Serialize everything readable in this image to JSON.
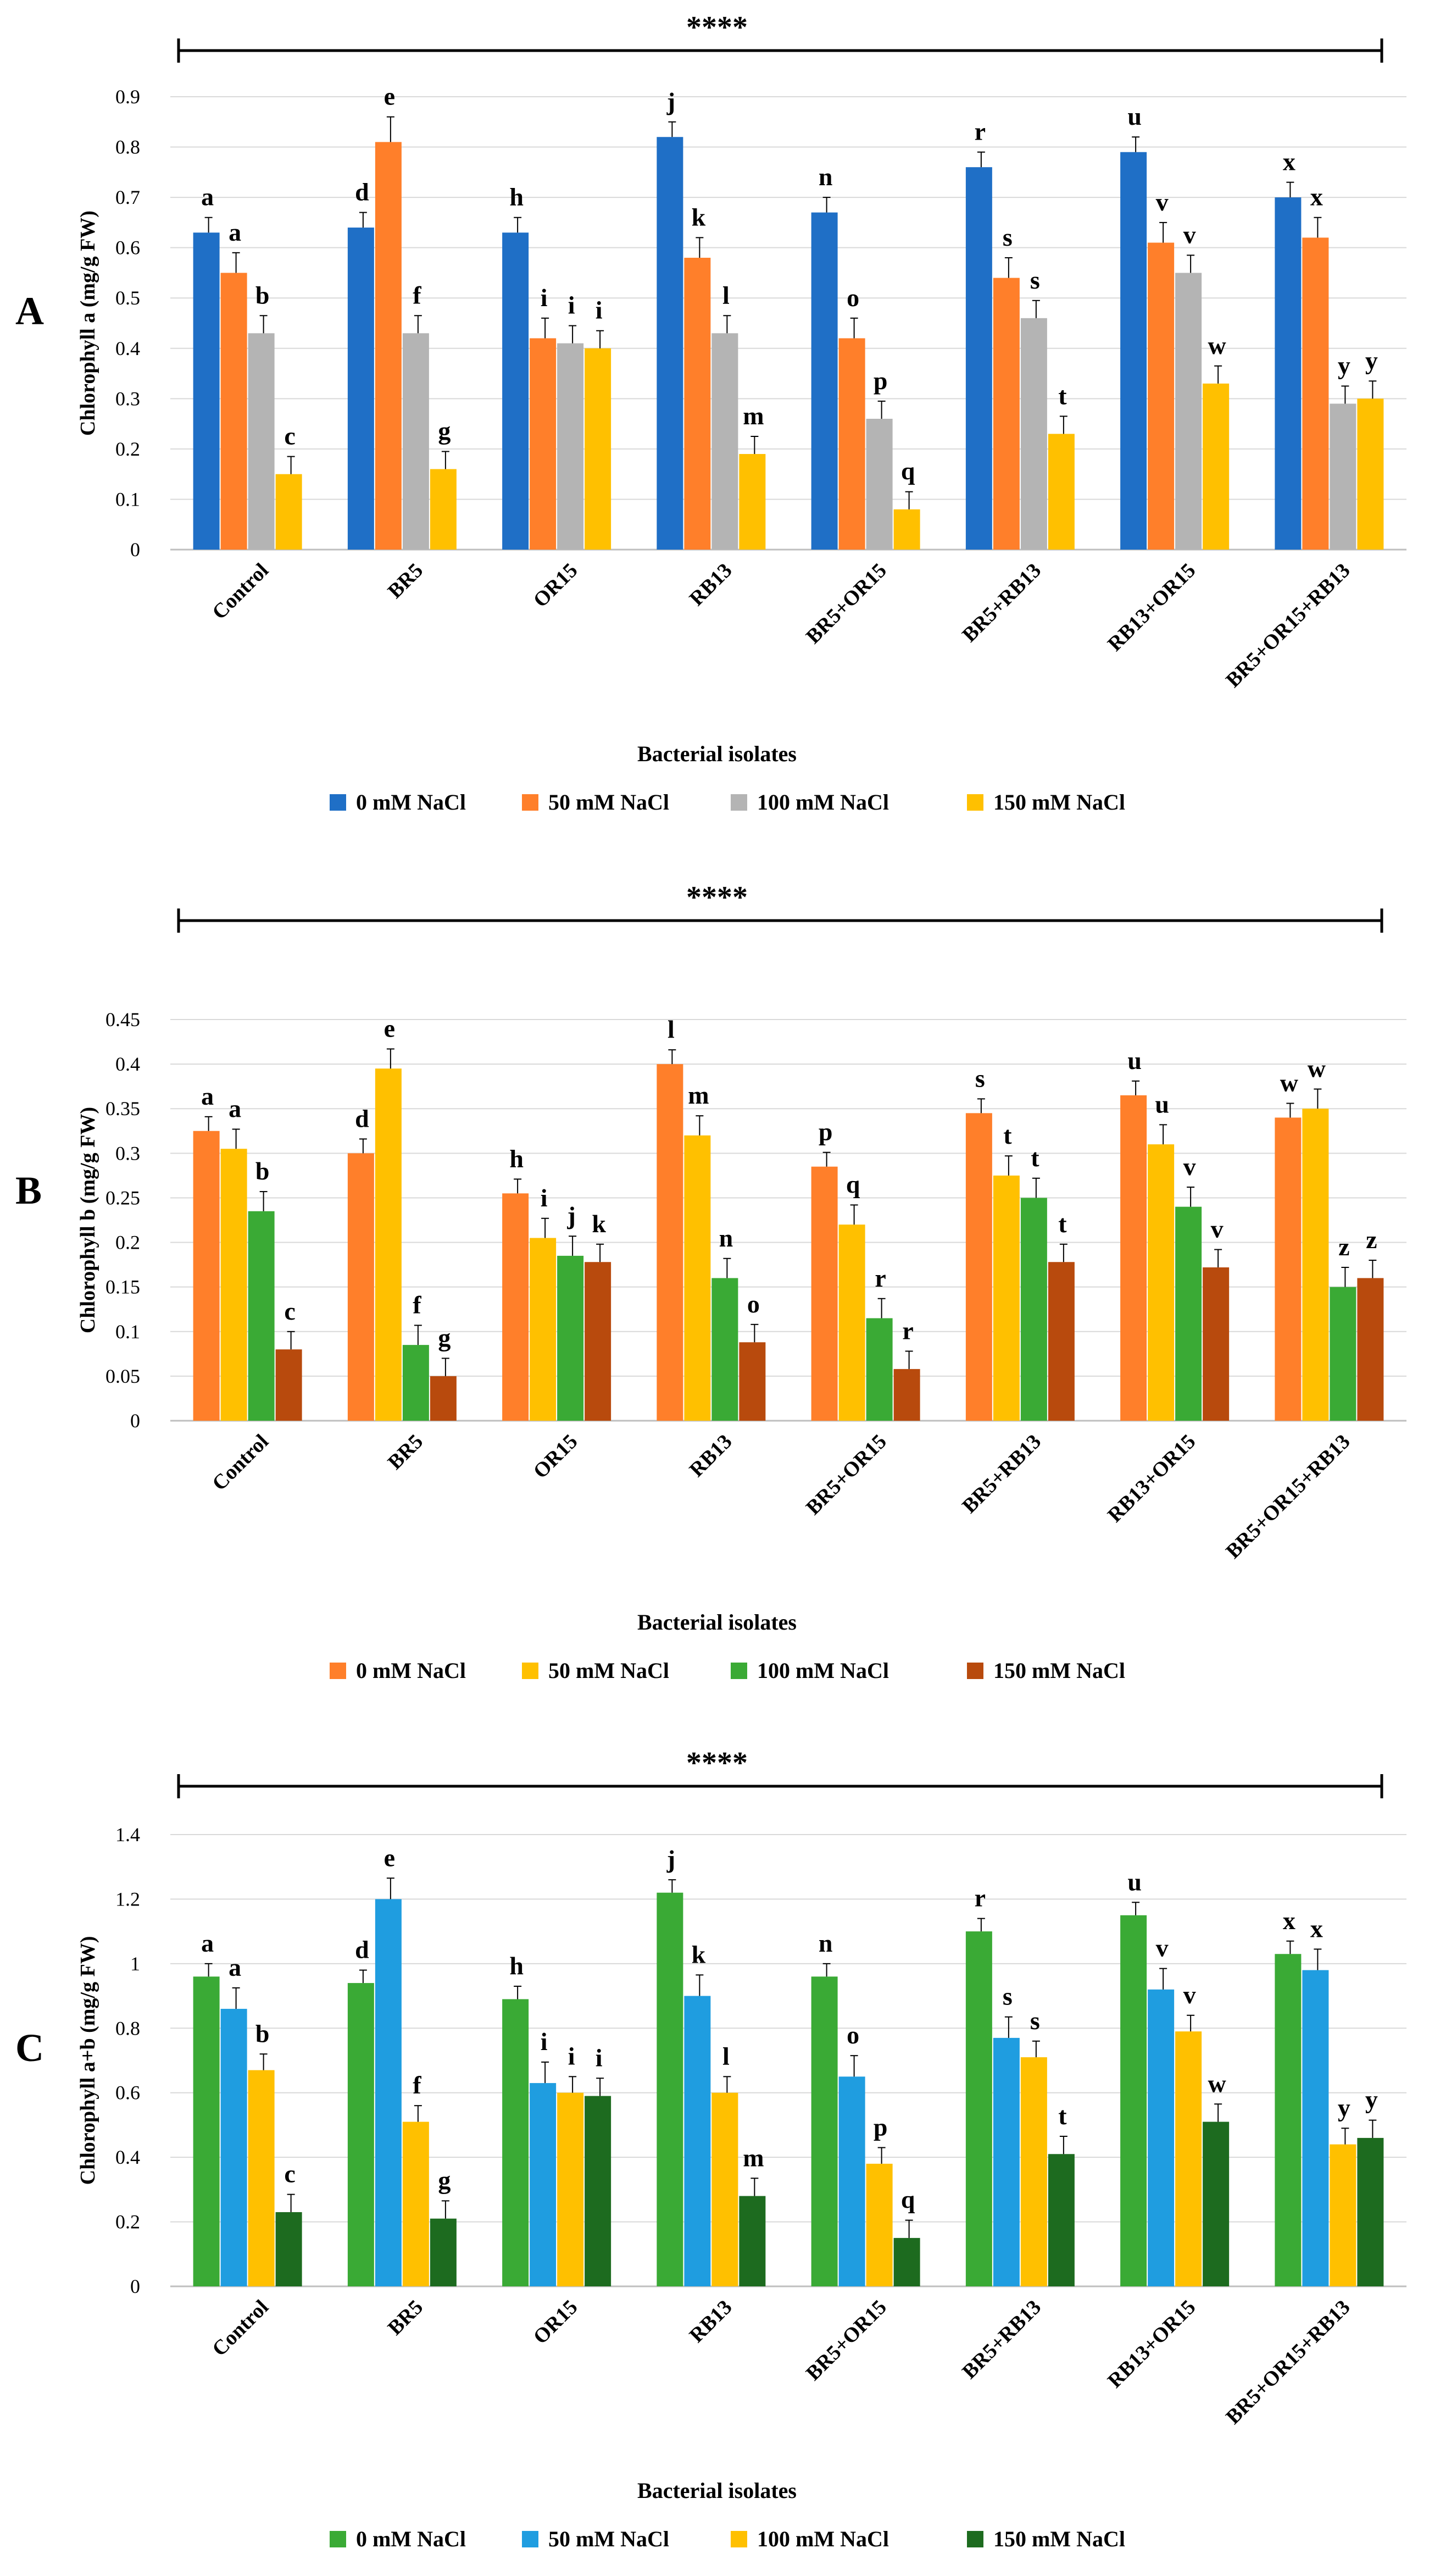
{
  "figure": {
    "significance": "****",
    "panels": [
      "A",
      "B",
      "C"
    ],
    "xlabel": "Bacterial isolates"
  },
  "chart_data": [
    {
      "panel": "A",
      "type": "bar",
      "title": "",
      "ylabel": "Chlorophyll a (mg/g FW)",
      "xlabel": "Bacterial isolates",
      "ylim": [
        0,
        0.9
      ],
      "yticks": [
        "0",
        "0.1",
        "0.2",
        "0.3",
        "0.4",
        "0.5",
        "0.6",
        "0.7",
        "0.8",
        "0.9"
      ],
      "ytick_values": [
        0,
        0.1,
        0.2,
        0.3,
        0.4,
        0.5,
        0.6,
        0.7,
        0.8,
        0.9
      ],
      "grid": true,
      "legend_position": "bottom-center",
      "significance": "****",
      "categories": [
        "Control",
        "BR5",
        "OR15",
        "RB13",
        "BR5+OR15",
        "BR5+RB13",
        "RB13+OR15",
        "BR5+OR15+RB13"
      ],
      "series": [
        {
          "name": "0 mM NaCl",
          "color": "#1f6fc6",
          "values": [
            0.63,
            0.64,
            0.63,
            0.82,
            0.67,
            0.76,
            0.79,
            0.7
          ],
          "errors": [
            0.03,
            0.03,
            0.03,
            0.03,
            0.03,
            0.03,
            0.03,
            0.03
          ],
          "letters": [
            "a",
            "d",
            "h",
            "j",
            "n",
            "r",
            "u",
            "x"
          ]
        },
        {
          "name": "50 mM NaCl",
          "color": "#ff7f2a",
          "values": [
            0.55,
            0.81,
            0.42,
            0.58,
            0.42,
            0.54,
            0.61,
            0.62
          ],
          "errors": [
            0.04,
            0.05,
            0.04,
            0.04,
            0.04,
            0.04,
            0.04,
            0.04
          ],
          "letters": [
            "a",
            "e",
            "i",
            "k",
            "o",
            "s",
            "v",
            "x"
          ]
        },
        {
          "name": "100 mM NaCl",
          "color": "#b4b4b4",
          "values": [
            0.43,
            0.43,
            0.41,
            0.43,
            0.26,
            0.46,
            0.55,
            0.29
          ],
          "errors": [
            0.035,
            0.035,
            0.035,
            0.035,
            0.035,
            0.035,
            0.035,
            0.035
          ],
          "letters": [
            "b",
            "f",
            "i",
            "l",
            "p",
            "s",
            "v",
            "y"
          ]
        },
        {
          "name": "150 mM NaCl",
          "color": "#ffc000",
          "values": [
            0.15,
            0.16,
            0.4,
            0.19,
            0.08,
            0.23,
            0.33,
            0.3
          ],
          "errors": [
            0.035,
            0.035,
            0.035,
            0.035,
            0.035,
            0.035,
            0.035,
            0.035
          ],
          "letters": [
            "c",
            "g",
            "i",
            "m",
            "q",
            "t",
            "w",
            "y"
          ]
        }
      ]
    },
    {
      "panel": "B",
      "type": "bar",
      "title": "",
      "ylabel": "Chlorophyll b (mg/g FW)",
      "xlabel": "Bacterial isolates",
      "ylim": [
        0,
        0.45
      ],
      "yticks": [
        "0",
        "0.05",
        "0.1",
        "0.15",
        "0.2",
        "0.25",
        "0.3",
        "0.35",
        "0.4",
        "0.45"
      ],
      "ytick_values": [
        0,
        0.05,
        0.1,
        0.15,
        0.2,
        0.25,
        0.3,
        0.35,
        0.4,
        0.45
      ],
      "grid": true,
      "legend_position": "bottom-center",
      "significance": "****",
      "categories": [
        "Control",
        "BR5",
        "OR15",
        "RB13",
        "BR5+OR15",
        "BR5+RB13",
        "RB13+OR15",
        "BR5+OR15+RB13"
      ],
      "series": [
        {
          "name": "0 mM NaCl",
          "color": "#ff7f2a",
          "values": [
            0.325,
            0.3,
            0.255,
            0.4,
            0.285,
            0.345,
            0.365,
            0.34
          ],
          "errors": [
            0.016,
            0.016,
            0.016,
            0.016,
            0.016,
            0.016,
            0.016,
            0.016
          ],
          "letters": [
            "a",
            "d",
            "h",
            "l",
            "p",
            "s",
            "u",
            "w"
          ]
        },
        {
          "name": "50 mM NaCl",
          "color": "#ffc000",
          "values": [
            0.305,
            0.395,
            0.205,
            0.32,
            0.22,
            0.275,
            0.31,
            0.35
          ],
          "errors": [
            0.022,
            0.022,
            0.022,
            0.022,
            0.022,
            0.022,
            0.022,
            0.022
          ],
          "letters": [
            "a",
            "e",
            "i",
            "m",
            "q",
            "t",
            "u",
            "w"
          ]
        },
        {
          "name": "100 mM NaCl",
          "color": "#3aaa35",
          "values": [
            0.235,
            0.085,
            0.185,
            0.16,
            0.115,
            0.25,
            0.24,
            0.15
          ],
          "errors": [
            0.022,
            0.022,
            0.022,
            0.022,
            0.022,
            0.022,
            0.022,
            0.022
          ],
          "letters": [
            "b",
            "f",
            "j",
            "n",
            "r",
            "t",
            "v",
            "z"
          ]
        },
        {
          "name": "150 mM NaCl",
          "color": "#b84a0d",
          "values": [
            0.08,
            0.05,
            0.178,
            0.088,
            0.058,
            0.178,
            0.172,
            0.16
          ],
          "errors": [
            0.02,
            0.02,
            0.02,
            0.02,
            0.02,
            0.02,
            0.02,
            0.02
          ],
          "letters": [
            "c",
            "g",
            "k",
            "o",
            "r",
            "t",
            "v",
            "z"
          ]
        }
      ]
    },
    {
      "panel": "C",
      "type": "bar",
      "title": "",
      "ylabel": "Chlorophyll a+b (mg/g FW)",
      "xlabel": "Bacterial isolates",
      "ylim": [
        0,
        1.4
      ],
      "yticks": [
        "0",
        "0.2",
        "0.4",
        "0.6",
        "0.8",
        "1",
        "1.2",
        "1.4"
      ],
      "ytick_values": [
        0,
        0.2,
        0.4,
        0.6,
        0.8,
        1,
        1.2,
        1.4
      ],
      "grid": true,
      "legend_position": "bottom-center",
      "significance": "****",
      "categories": [
        "Control",
        "BR5",
        "OR15",
        "RB13",
        "BR5+OR15",
        "BR5+RB13",
        "RB13+OR15",
        "BR5+OR15+RB13"
      ],
      "series": [
        {
          "name": "0 mM NaCl",
          "color": "#3aaa35",
          "values": [
            0.96,
            0.94,
            0.89,
            1.22,
            0.96,
            1.1,
            1.15,
            1.03
          ],
          "errors": [
            0.04,
            0.04,
            0.04,
            0.04,
            0.04,
            0.04,
            0.04,
            0.04
          ],
          "letters": [
            "a",
            "d",
            "h",
            "j",
            "n",
            "r",
            "u",
            "x"
          ]
        },
        {
          "name": "50 mM NaCl",
          "color": "#1f9de0",
          "values": [
            0.86,
            1.2,
            0.63,
            0.9,
            0.65,
            0.77,
            0.92,
            0.98
          ],
          "errors": [
            0.065,
            0.065,
            0.065,
            0.065,
            0.065,
            0.065,
            0.065,
            0.065
          ],
          "letters": [
            "a",
            "e",
            "i",
            "k",
            "o",
            "s",
            "v",
            "x"
          ]
        },
        {
          "name": "100 mM NaCl",
          "color": "#ffc000",
          "values": [
            0.67,
            0.51,
            0.6,
            0.6,
            0.38,
            0.71,
            0.79,
            0.44
          ],
          "errors": [
            0.05,
            0.05,
            0.05,
            0.05,
            0.05,
            0.05,
            0.05,
            0.05
          ],
          "letters": [
            "b",
            "f",
            "i",
            "l",
            "p",
            "s",
            "v",
            "y"
          ]
        },
        {
          "name": "150 mM NaCl",
          "color": "#1d6b1f",
          "values": [
            0.23,
            0.21,
            0.59,
            0.28,
            0.15,
            0.41,
            0.51,
            0.46
          ],
          "errors": [
            0.055,
            0.055,
            0.055,
            0.055,
            0.055,
            0.055,
            0.055,
            0.055
          ],
          "letters": [
            "c",
            "g",
            "i",
            "m",
            "q",
            "t",
            "w",
            "y"
          ]
        }
      ]
    }
  ]
}
